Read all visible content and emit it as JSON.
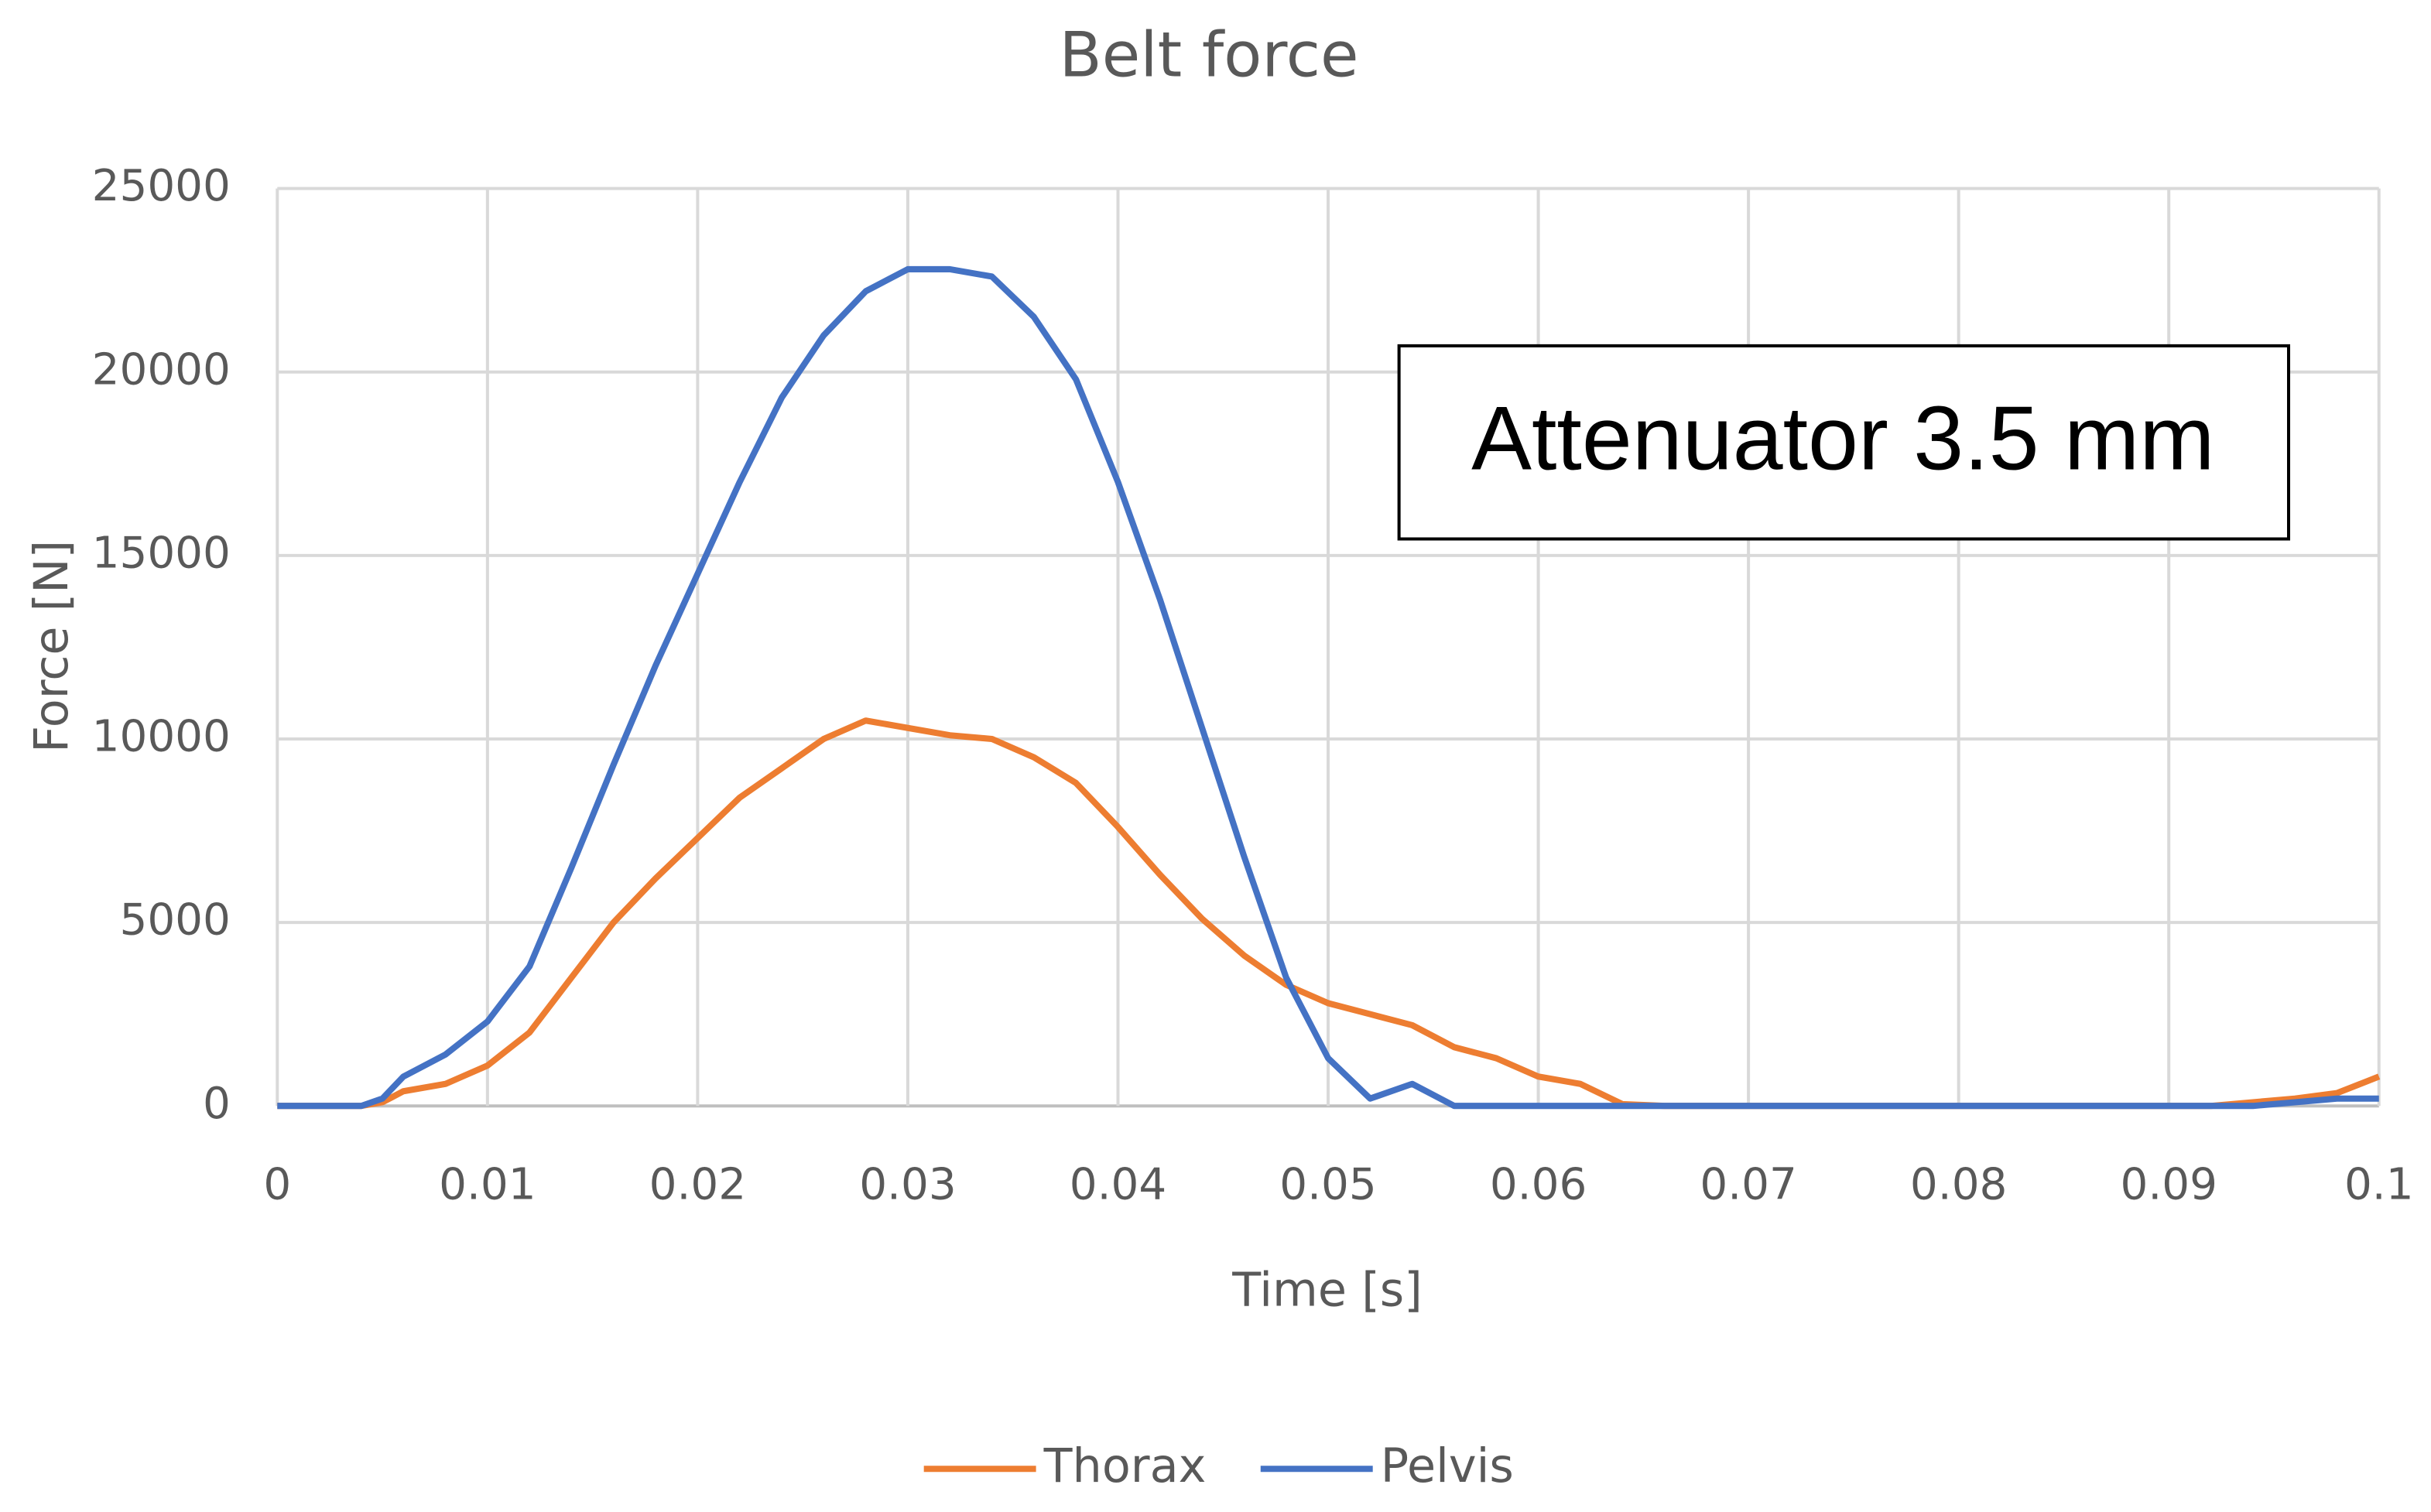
{
  "chart_data": {
    "type": "line",
    "title": "Belt force",
    "x_label": "Time [s]",
    "y_label": "Force [N]",
    "annotation": "Attenuator 3.5 mm",
    "x": [
      0,
      0.002,
      0.004,
      0.005,
      0.006,
      0.008,
      0.01,
      0.012,
      0.014,
      0.016,
      0.018,
      0.02,
      0.022,
      0.024,
      0.026,
      0.028,
      0.03,
      0.032,
      0.034,
      0.036,
      0.038,
      0.04,
      0.042,
      0.044,
      0.046,
      0.048,
      0.05,
      0.052,
      0.054,
      0.056,
      0.058,
      0.06,
      0.062,
      0.064,
      0.066,
      0.07,
      0.08,
      0.09,
      0.092,
      0.094,
      0.096,
      0.098,
      0.1
    ],
    "series": [
      {
        "name": "Thorax",
        "color": "#ed7d31",
        "values": [
          0,
          0,
          0,
          100,
          400,
          600,
          1100,
          2000,
          3500,
          5000,
          6200,
          7300,
          8400,
          9200,
          10000,
          10500,
          10300,
          10100,
          10000,
          9500,
          8800,
          7600,
          6300,
          5100,
          4100,
          3300,
          2800,
          2500,
          2200,
          1600,
          1300,
          800,
          600,
          50,
          0,
          0,
          0,
          0,
          0,
          100,
          200,
          350,
          800
        ]
      },
      {
        "name": "Pelvis",
        "color": "#4472c4",
        "values": [
          0,
          0,
          0,
          200,
          800,
          1400,
          2300,
          3800,
          6500,
          9300,
          12000,
          14500,
          17000,
          19300,
          21000,
          22200,
          22800,
          22800,
          22600,
          21500,
          19800,
          17000,
          13800,
          10300,
          6800,
          3500,
          1300,
          200,
          600,
          0,
          0,
          0,
          0,
          0,
          0,
          0,
          0,
          0,
          0,
          0,
          100,
          200,
          200
        ]
      }
    ],
    "xlim": [
      0,
      0.1
    ],
    "xticks": [
      0,
      0.01,
      0.02,
      0.03,
      0.04,
      0.05,
      0.06,
      0.07,
      0.08,
      0.09,
      0.1
    ],
    "ylim": [
      0,
      25000
    ],
    "yticks": [
      0,
      5000,
      10000,
      15000,
      20000,
      25000
    ],
    "grid": true,
    "legend": "bottom"
  }
}
